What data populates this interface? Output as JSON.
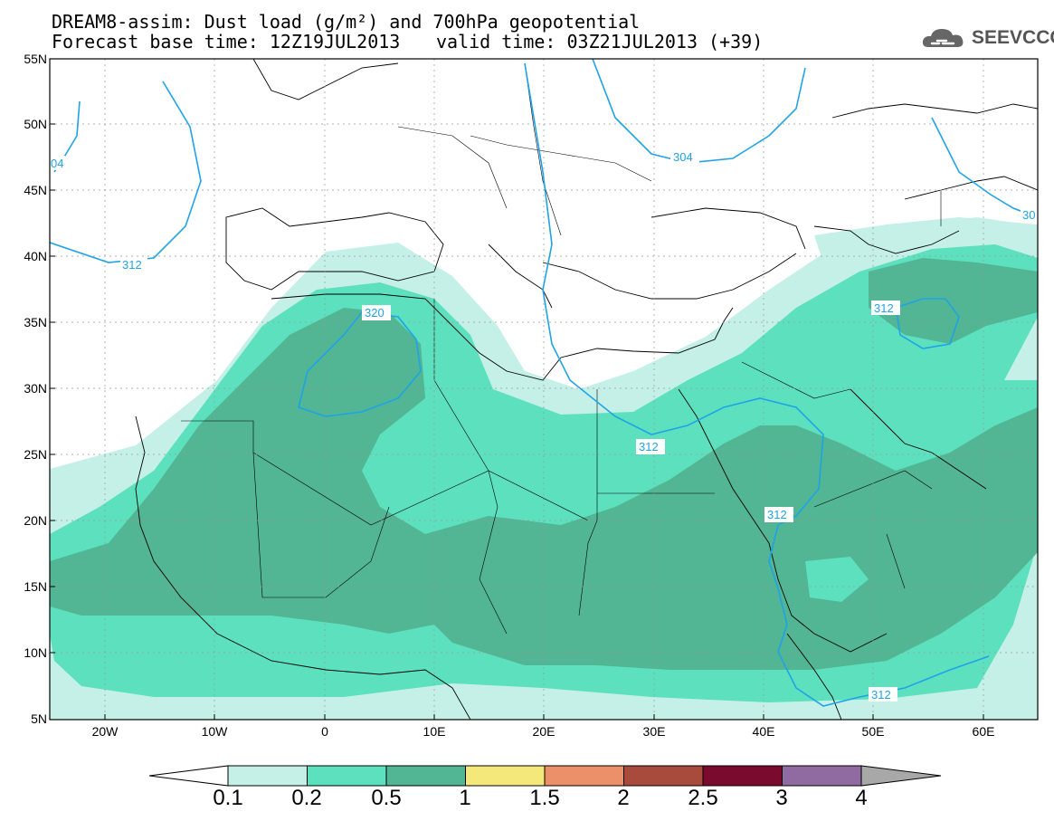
{
  "title": {
    "line1": "DREAM8-assim: Dust load (g/m²) and 700hPa geopotential",
    "line2": "Forecast base time: 12Z19JUL2013",
    "valid": "valid time: 03Z21JUL2013 (+39)"
  },
  "logo": {
    "text": "SEEVCCC",
    "icon": "cloud-logo-icon"
  },
  "map": {
    "lat_labels": [
      "55N",
      "50N",
      "45N",
      "40N",
      "35N",
      "30N",
      "25N",
      "20N",
      "15N",
      "10N",
      "5N"
    ],
    "lon_labels": [
      "20W",
      "10W",
      "0",
      "10E",
      "20E",
      "30E",
      "40E",
      "50E",
      "60E"
    ],
    "contour_labels": [
      "04",
      "312",
      "320",
      "304",
      "30",
      "312",
      "312",
      "312",
      "312"
    ],
    "colors": {
      "level_0_1": "#c4f0e8",
      "level_0_2": "#5de0bd",
      "level_0_5": "#52b593",
      "contour": "#1fa3e8"
    }
  },
  "colorbar": {
    "labels": [
      "0.1",
      "0.2",
      "0.5",
      "1",
      "1.5",
      "2",
      "2.5",
      "3",
      "4"
    ],
    "colors": [
      "#c4f0e8",
      "#5de0bd",
      "#52b593",
      "#f5e87a",
      "#ec9069",
      "#a84a3c",
      "#7a0a2e",
      "#8f6ba1"
    ]
  }
}
